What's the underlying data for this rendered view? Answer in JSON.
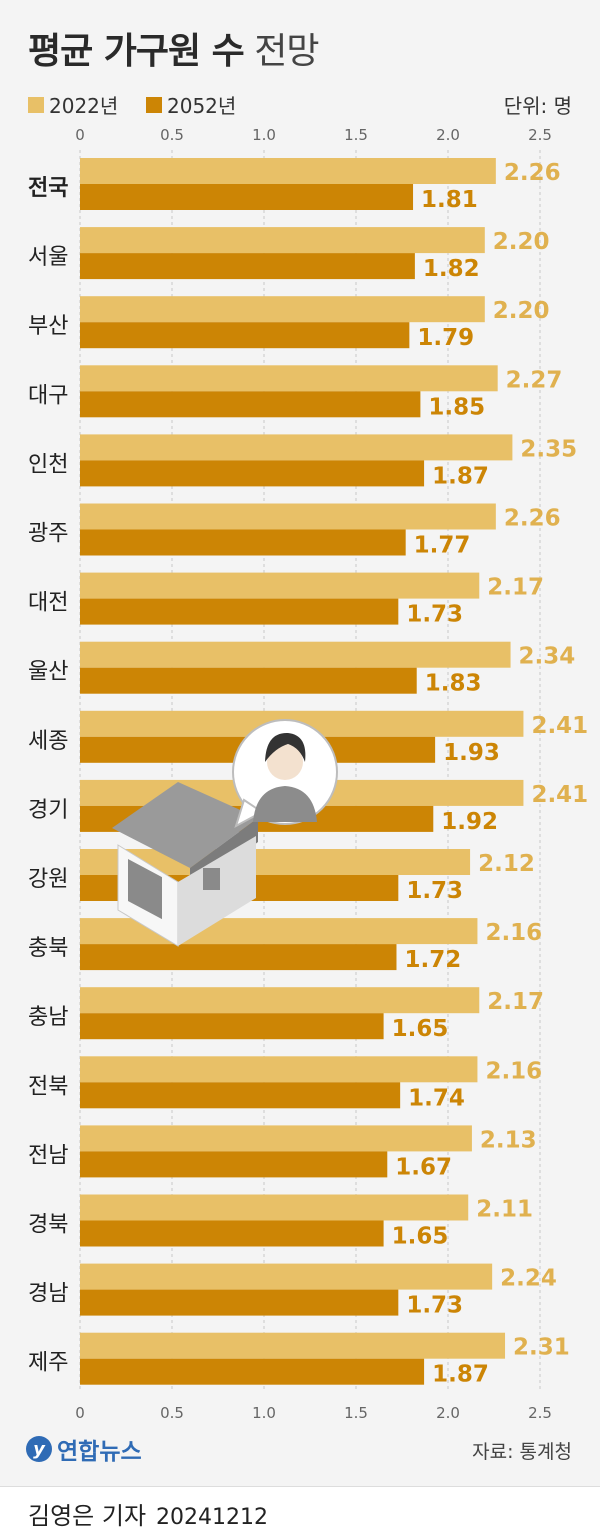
{
  "header": {
    "title_strong": "평균 가구원 수",
    "title_light": "전망",
    "unit": "단위: 명"
  },
  "colors": {
    "light_bar": "#e8c067",
    "dark_bar": "#cc8505",
    "light_label": "#e0b14f",
    "dark_label": "#cc8505"
  },
  "chart_data": {
    "type": "bar",
    "orientation": "horizontal",
    "categories": [
      "전국",
      "서울",
      "부산",
      "대구",
      "인천",
      "광주",
      "대전",
      "울산",
      "세종",
      "경기",
      "강원",
      "충북",
      "충남",
      "전북",
      "전남",
      "경북",
      "경남",
      "제주"
    ],
    "series": [
      {
        "name": "2022년",
        "values": [
          2.26,
          2.2,
          2.2,
          2.27,
          2.35,
          2.26,
          2.17,
          2.34,
          2.41,
          2.41,
          2.12,
          2.16,
          2.17,
          2.16,
          2.13,
          2.11,
          2.24,
          2.31
        ]
      },
      {
        "name": "2052년",
        "values": [
          1.81,
          1.82,
          1.79,
          1.85,
          1.87,
          1.77,
          1.73,
          1.83,
          1.93,
          1.92,
          1.73,
          1.72,
          1.65,
          1.74,
          1.67,
          1.65,
          1.73,
          1.87
        ]
      }
    ],
    "xlim": [
      0,
      2.5
    ],
    "xticks": [
      "0",
      "0.5",
      "1.0",
      "1.5",
      "2.0",
      "2.5"
    ],
    "grid": true,
    "legend": "top-left",
    "unit": "단위: 명"
  },
  "footer": {
    "source": "자료: 통계청",
    "logo_text": "연합뉴스",
    "logo_mark": "y",
    "byline": "김영은 기자",
    "date": "20241212"
  }
}
